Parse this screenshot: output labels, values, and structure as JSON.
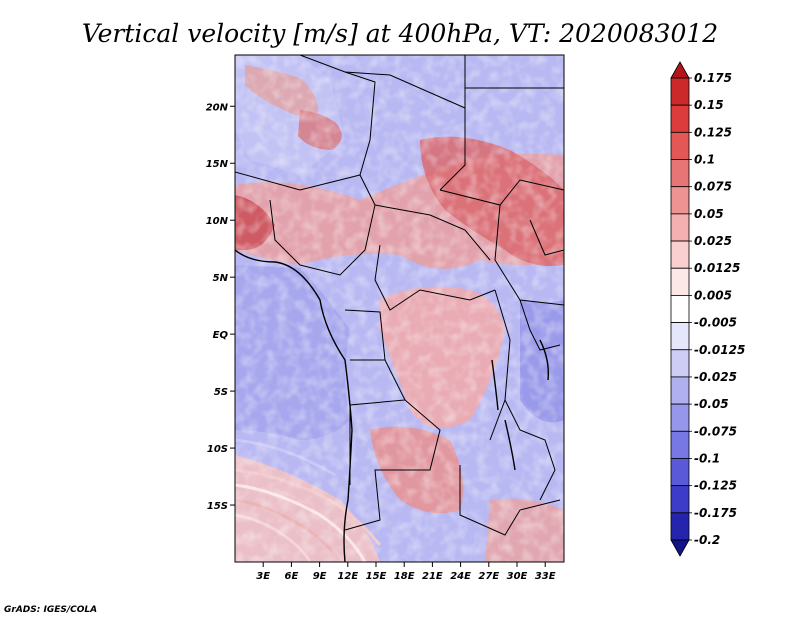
{
  "chart_data": {
    "type": "heatmap",
    "title": "Vertical velocity [m/s] at 400hPa, VT: 2020083012",
    "variable": "Vertical velocity",
    "units": "m/s",
    "level": "400hPa",
    "valid_time": "2020083012",
    "x_axis": {
      "lon_range": [
        0,
        35
      ],
      "ticks": [
        3,
        6,
        9,
        12,
        15,
        18,
        21,
        24,
        27,
        30,
        33
      ],
      "tick_labels": [
        "3E",
        "6E",
        "9E",
        "12E",
        "15E",
        "18E",
        "21E",
        "24E",
        "27E",
        "30E",
        "33E"
      ]
    },
    "y_axis": {
      "lat_range": [
        -20,
        24.5
      ],
      "ticks": [
        20,
        15,
        10,
        5,
        0,
        -5,
        -10,
        -15
      ],
      "tick_labels": [
        "20N",
        "15N",
        "10N",
        "5N",
        "EQ",
        "5S",
        "10S",
        "15S"
      ]
    },
    "colorbar": {
      "levels": [
        "0.175",
        "0.15",
        "0.125",
        "0.1",
        "0.075",
        "0.05",
        "0.025",
        "0.0125",
        "0.005",
        "-0.005",
        "-0.0125",
        "-0.025",
        "-0.05",
        "-0.075",
        "-0.1",
        "-0.125",
        "-0.175",
        "-0.2"
      ],
      "colors": [
        "#b4141c",
        "#cc2a2a",
        "#dd3c3c",
        "#e35757",
        "#e87575",
        "#ee9292",
        "#f4b0b0",
        "#f9cfcf",
        "#fde8e8",
        "#ffffff",
        "#e6e6fa",
        "#cdcdf5",
        "#b0b0f0",
        "#9696eb",
        "#7878e4",
        "#5a5ad9",
        "#3c3cc8",
        "#2424ac",
        "#14148a"
      ]
    },
    "grid": false
  },
  "footer": {
    "credit": "GrADS: IGES/COLA"
  }
}
